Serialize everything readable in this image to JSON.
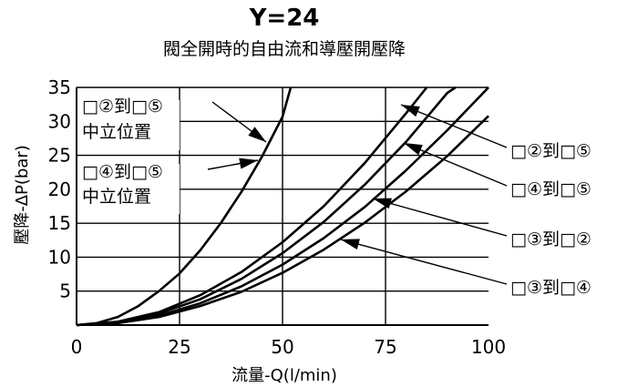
{
  "chart_data": {
    "type": "line",
    "title": "Y=24",
    "subtitle": "閥全開時的自由流和導壓開壓降",
    "xlabel": "流量-Q(l/min)",
    "ylabel": "壓降-ΔP(bar)",
    "xlim": [
      0,
      100
    ],
    "ylim": [
      0,
      35
    ],
    "x_ticks": [
      0,
      25,
      50,
      75,
      100
    ],
    "y_ticks": [
      5,
      10,
      15,
      20,
      25,
      30,
      35
    ],
    "grid": true,
    "series": [
      {
        "name": "□②到□⑤ 中立位置",
        "x": [
          0,
          5,
          10,
          15,
          20,
          25,
          30,
          35,
          40,
          45,
          50,
          52
        ],
        "y": [
          0,
          0.3,
          1.2,
          2.8,
          5.0,
          7.6,
          11.0,
          15.0,
          19.6,
          24.8,
          30.7,
          35
        ]
      },
      {
        "name": "□④到□⑤ 中立位置",
        "x": [
          0,
          10,
          20,
          30,
          40,
          50,
          60,
          70,
          80,
          85
        ],
        "y": [
          0,
          0.5,
          1.9,
          4.4,
          7.8,
          12.2,
          17.5,
          23.9,
          31.2,
          35
        ]
      },
      {
        "name": "□②到□⑤",
        "x": [
          0,
          10,
          20,
          30,
          40,
          50,
          60,
          70,
          80,
          90,
          92
        ],
        "y": [
          0,
          0.4,
          1.7,
          3.8,
          6.8,
          10.6,
          15.2,
          20.7,
          27.0,
          34.2,
          35
        ]
      },
      {
        "name": "□③到□②",
        "x": [
          0,
          10,
          20,
          30,
          40,
          50,
          60,
          70,
          80,
          90,
          100
        ],
        "y": [
          0,
          0.35,
          1.4,
          3.2,
          5.7,
          8.9,
          12.8,
          17.4,
          22.8,
          28.7,
          35
        ]
      },
      {
        "name": "□③到□④",
        "x": [
          0,
          10,
          20,
          30,
          40,
          50,
          60,
          70,
          80,
          90,
          100
        ],
        "y": [
          0,
          0.3,
          1.2,
          2.8,
          4.9,
          7.7,
          11.1,
          15.1,
          19.7,
          24.9,
          30.8
        ]
      }
    ],
    "annotations": {
      "left_top": {
        "lines": [
          "□②到□⑤",
          "中立位置"
        ]
      },
      "left_mid": {
        "lines": [
          "□④到□⑤",
          "中立位置"
        ]
      },
      "right": [
        "□②到□⑤",
        "□④到□⑤",
        "□③到□②",
        "□③到□④"
      ]
    }
  }
}
